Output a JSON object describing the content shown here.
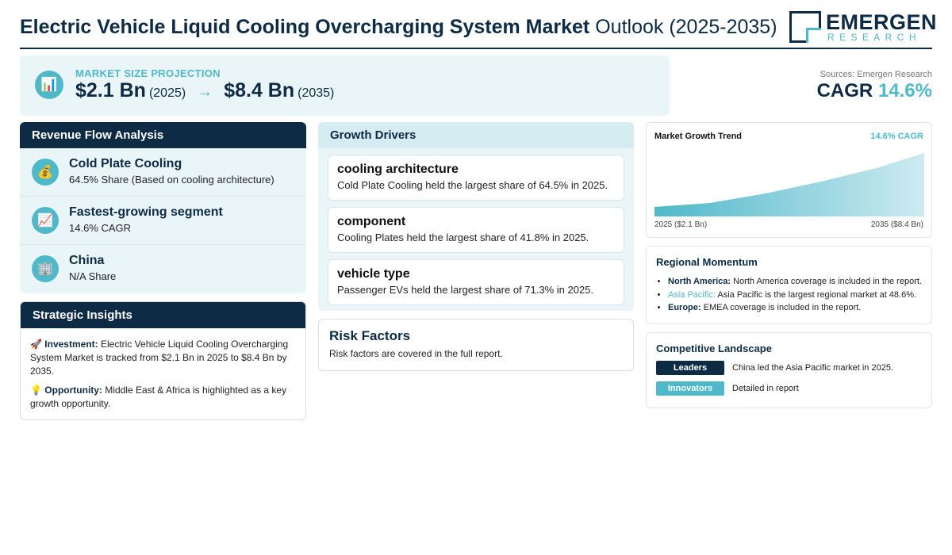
{
  "header": {
    "title_bold": "Electric Vehicle Liquid Cooling Overcharging System Market",
    "title_rest": "Outlook (2025-2035)",
    "logo_main": "EMERGEN",
    "logo_sub": "RESEARCH"
  },
  "projection": {
    "label": "MARKET SIZE PROJECTION",
    "start_value": "$2.1 Bn",
    "start_year": "(2025)",
    "arrow": "→",
    "end_value": "$8.4 Bn",
    "end_year": "(2035)",
    "icon": "bar-chart-icon"
  },
  "cagr_block": {
    "sources": "Sources: Emergen Research",
    "label": "CAGR",
    "value": "14.6%"
  },
  "revenue": {
    "heading": "Revenue Flow Analysis",
    "items": [
      {
        "icon": "money-bag-icon",
        "glyph": "💰",
        "title": "Cold Plate Cooling",
        "sub": "64.5% Share (Based on cooling architecture)"
      },
      {
        "icon": "trend-chart-icon",
        "glyph": "📈",
        "title": "Fastest-growing segment",
        "sub": "14.6% CAGR"
      },
      {
        "icon": "building-icon",
        "glyph": "🏢",
        "title": "China",
        "sub": "N/A Share"
      }
    ]
  },
  "insights": {
    "heading": "Strategic Insights",
    "investment_label": "Investment:",
    "investment_text": "Electric Vehicle Liquid Cooling Overcharging System Market is tracked from $2.1 Bn in 2025 to $8.4 Bn by 2035.",
    "opportunity_label": "Opportunity:",
    "opportunity_text": "Middle East & Africa is highlighted as a key growth opportunity."
  },
  "drivers": {
    "heading": "Growth Drivers",
    "items": [
      {
        "title": "cooling architecture",
        "text": "Cold Plate Cooling held the largest share of 64.5% in 2025."
      },
      {
        "title": "component",
        "text": "Cooling Plates held the largest share of 41.8% in 2025."
      },
      {
        "title": "vehicle type",
        "text": "Passenger EVs held the largest share of 71.3% in 2025."
      }
    ]
  },
  "risk": {
    "heading": "Risk Factors",
    "text": "Risk factors are covered in the full report."
  },
  "trend": {
    "title": "Market Growth Trend",
    "cagr": "14.6% CAGR",
    "start_label": "2025 ($2.1 Bn)",
    "end_label": "2035 ($8.4 Bn)"
  },
  "regional": {
    "heading": "Regional Momentum",
    "items": [
      {
        "region": "North America:",
        "text": "North America coverage is included in the report."
      },
      {
        "region": "Asia Pacific:",
        "text": "Asia Pacific is the largest regional market at 48.6%."
      },
      {
        "region": "Europe:",
        "text": "EMEA coverage is included in the report."
      }
    ]
  },
  "competitive": {
    "heading": "Competitive Landscape",
    "rows": [
      {
        "badge": "Leaders",
        "text": "China led the Asia Pacific market in 2025."
      },
      {
        "badge": "Innovators",
        "text": "Detailed in report"
      }
    ]
  },
  "colors": {
    "navy": "#0d2b45",
    "teal": "#4fb8c9",
    "panel_bg": "#eaf5f8"
  }
}
